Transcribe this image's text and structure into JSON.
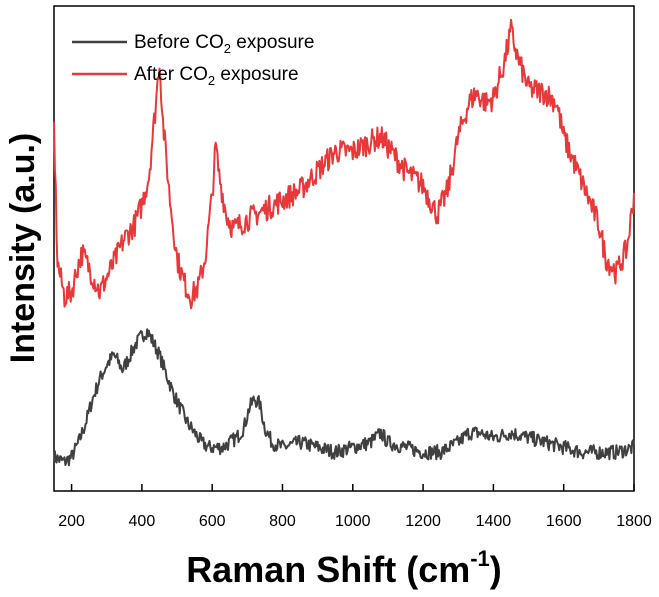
{
  "chart_data": {
    "type": "line",
    "title": "",
    "xlabel": "Raman Shift (cm",
    "xlabel_sup": "-1",
    "xlabel_suffix": ")",
    "ylabel": "Intensity (a.u.)",
    "xlim": [
      150,
      1800
    ],
    "ylim": [
      0,
      100
    ],
    "x_ticks": [
      200,
      400,
      600,
      800,
      1000,
      1200,
      1400,
      1600,
      1800
    ],
    "y_ticks_shown": false,
    "grid": false,
    "legend_position": "top-left",
    "series": [
      {
        "name": "Before CO2 exposure",
        "name_parts": [
          "Before CO",
          "2",
          " exposure"
        ],
        "color": "#404040",
        "x": [
          150,
          180,
          200,
          220,
          240,
          260,
          280,
          300,
          320,
          330,
          345,
          360,
          380,
          400,
          415,
          430,
          450,
          470,
          490,
          510,
          530,
          550,
          570,
          590,
          610,
          630,
          650,
          670,
          690,
          705,
          720,
          735,
          750,
          770,
          800,
          850,
          900,
          950,
          1000,
          1050,
          1080,
          1100,
          1150,
          1200,
          1250,
          1300,
          1330,
          1360,
          1400,
          1450,
          1500,
          1550,
          1600,
          1650,
          1700,
          1750,
          1800
        ],
        "y": [
          7,
          6,
          7,
          10,
          14,
          19,
          23,
          26,
          28,
          27,
          25,
          27,
          30,
          32,
          33,
          31,
          28,
          24,
          20,
          17,
          14,
          12,
          10,
          9,
          9,
          9,
          10,
          11,
          13,
          17,
          19,
          18,
          13,
          10,
          9,
          10,
          9,
          8,
          9,
          10,
          12,
          10,
          9,
          8,
          8,
          10,
          12,
          12,
          11,
          12,
          11,
          10,
          9,
          8,
          8,
          8,
          9
        ]
      },
      {
        "name": "After CO2 exposure",
        "name_parts": [
          "After CO",
          "2",
          " exposure"
        ],
        "color": "#e8393a",
        "x": [
          150,
          160,
          180,
          200,
          220,
          230,
          250,
          280,
          300,
          320,
          350,
          380,
          400,
          420,
          440,
          450,
          460,
          480,
          500,
          520,
          540,
          560,
          580,
          600,
          610,
          620,
          640,
          660,
          700,
          750,
          800,
          850,
          900,
          950,
          1000,
          1050,
          1080,
          1100,
          1150,
          1200,
          1240,
          1270,
          1300,
          1330,
          1350,
          1380,
          1400,
          1430,
          1450,
          1470,
          1500,
          1550,
          1580,
          1600,
          1650,
          1700,
          1720,
          1750,
          1780,
          1800
        ],
        "y": [
          75,
          47,
          40,
          41,
          47,
          49,
          46,
          41,
          44,
          47,
          52,
          55,
          59,
          65,
          80,
          89,
          76,
          60,
          48,
          43,
          40,
          42,
          48,
          61,
          71,
          65,
          57,
          54,
          56,
          58,
          60,
          62,
          66,
          70,
          70,
          72,
          73,
          71,
          66,
          63,
          57,
          62,
          73,
          80,
          82,
          80,
          81,
          88,
          95,
          89,
          83,
          82,
          80,
          73,
          64,
          55,
          48,
          45,
          50,
          61
        ]
      }
    ]
  }
}
